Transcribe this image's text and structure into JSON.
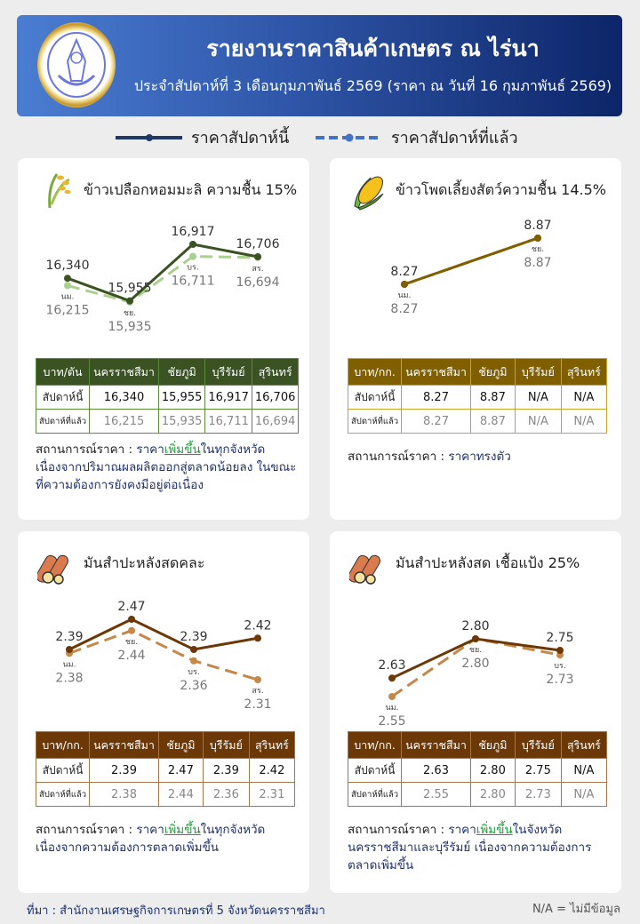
{
  "header": {
    "title": "รายงานราคาสินค้าเกษตร ณ ไร่นา",
    "subtitle": "ประจำสัปดาห์ที่ 3 เดือนกุมภาพันธ์ 2569 (ราคา ณ วันที่ 16 กุมภาพันธ์ 2569)",
    "logo_text": "สำนักงานเศรษฐกิจการเกษตร"
  },
  "legend": {
    "this_week": "ราคาสัปดาห์นี้",
    "last_week": "ราคาสัปดาห์ที่แล้ว",
    "this_color": "#1f3864",
    "last_color": "#4472c4"
  },
  "provinces": [
    "นครราชสีมา",
    "ชัยภูมิ",
    "บุรีรัมย์",
    "สุรินทร์"
  ],
  "abbr": [
    "นม.",
    "ชย.",
    "บร.",
    "สร."
  ],
  "row_labels": {
    "this": "สัปดาห์นี้",
    "last": "สัปดาห์ที่แล้ว"
  },
  "status_label": "สถานการณ์ราคา :",
  "cards": [
    {
      "title": "ข้าวเปลือกหอมมะลิ ความชื้น 15%",
      "icon": "rice-icon",
      "unit": "บาท/ตัน",
      "this": [
        "16,340",
        "15,955",
        "16,917",
        "16,706"
      ],
      "last": [
        "16,215",
        "15,935",
        "16,711",
        "16,694"
      ],
      "status": {
        "pre": "ราคา",
        "hl": "เพิ่มขึ้น",
        "post": "ในทุกจังหวัด เนื่องจากปริมาณผลผลิตออกสู่ตลาดน้อยลง ในขณะที่ความต้องการยังคงมีอยู่ต่อเนื่อง"
      },
      "colors": {
        "header": "#3b5323",
        "border": "#5b8c3a",
        "line": "#3b5323",
        "dash": "#a9d18e"
      }
    },
    {
      "title": "ข้าวโพดเลี้ยงสัตว์ความชื้น 14.5%",
      "icon": "corn-icon",
      "unit": "บาท/กก.",
      "this": [
        "8.27",
        "8.87",
        "N/A",
        "N/A"
      ],
      "last": [
        "8.27",
        "8.87",
        "N/A",
        "N/A"
      ],
      "status": {
        "pre": "ราคาทรงตัว",
        "hl": "",
        "post": ""
      },
      "colors": {
        "header": "#7f5f00",
        "border": "#c9a227",
        "line": "#7f5f00",
        "dash": "#7f5f00"
      }
    },
    {
      "title": "มันสำปะหลังสดคละ",
      "icon": "cassava-icon",
      "unit": "บาท/กก.",
      "this": [
        "2.39",
        "2.47",
        "2.39",
        "2.42"
      ],
      "last": [
        "2.38",
        "2.44",
        "2.36",
        "2.31"
      ],
      "status": {
        "pre": "ราคา",
        "hl": "เพิ่มขึ้น",
        "post": "ในทุกจังหวัด เนื่องจากความต้องการตลาดเพิ่มขึ้น"
      },
      "colors": {
        "header": "#6b3806",
        "border": "#a57545",
        "line": "#6b3806",
        "dash": "#c5874a"
      }
    },
    {
      "title": "มันสำปะหลังสด เชื้อแป้ง 25%",
      "icon": "cassava-icon",
      "unit": "บาท/กก.",
      "this": [
        "2.63",
        "2.80",
        "2.75",
        "N/A"
      ],
      "last": [
        "2.55",
        "2.80",
        "2.73",
        "N/A"
      ],
      "status": {
        "pre": "ราคา",
        "hl": "เพิ่มขึ้น",
        "post": "ในจังหวัด นครราชสีมาและบุรีรัมย์ เนื่องจากความต้องการ ตลาดเพิ่มขึ้น"
      },
      "colors": {
        "header": "#6b3806",
        "border": "#a57545",
        "line": "#6b3806",
        "dash": "#c5874a"
      }
    }
  ],
  "chart_data": [
    {
      "type": "line",
      "categories": [
        "นม.",
        "ชย.",
        "บร.",
        "สร."
      ],
      "series": [
        {
          "name": "ราคาสัปดาห์นี้",
          "values": [
            16340,
            15955,
            16917,
            16706
          ]
        },
        {
          "name": "ราคาสัปดาห์ที่แล้ว",
          "values": [
            16215,
            15935,
            16711,
            16694
          ]
        }
      ]
    },
    {
      "type": "line",
      "categories": [
        "นม.",
        "ชย."
      ],
      "series": [
        {
          "name": "ราคาสัปดาห์นี้",
          "values": [
            8.27,
            8.87
          ]
        },
        {
          "name": "ราคาสัปดาห์ที่แล้ว",
          "values": [
            8.27,
            8.87
          ]
        }
      ]
    },
    {
      "type": "line",
      "categories": [
        "นม.",
        "ชย.",
        "บร.",
        "สร."
      ],
      "series": [
        {
          "name": "ราคาสัปดาห์นี้",
          "values": [
            2.39,
            2.47,
            2.39,
            2.42
          ]
        },
        {
          "name": "ราคาสัปดาห์ที่แล้ว",
          "values": [
            2.38,
            2.44,
            2.36,
            2.31
          ]
        }
      ]
    },
    {
      "type": "line",
      "categories": [
        "นม.",
        "ชย.",
        "บร."
      ],
      "series": [
        {
          "name": "ราคาสัปดาห์นี้",
          "values": [
            2.63,
            2.8,
            2.75
          ]
        },
        {
          "name": "ราคาสัปดาห์ที่แล้ว",
          "values": [
            2.55,
            2.8,
            2.73
          ]
        }
      ]
    }
  ],
  "footer": {
    "source": "ที่มา : สำนักงานเศรษฐกิจการเกษตรที่ 5 จังหวัดนครราชสีมา",
    "na_note": "N/A = ไม่มีข้อมูล"
  }
}
